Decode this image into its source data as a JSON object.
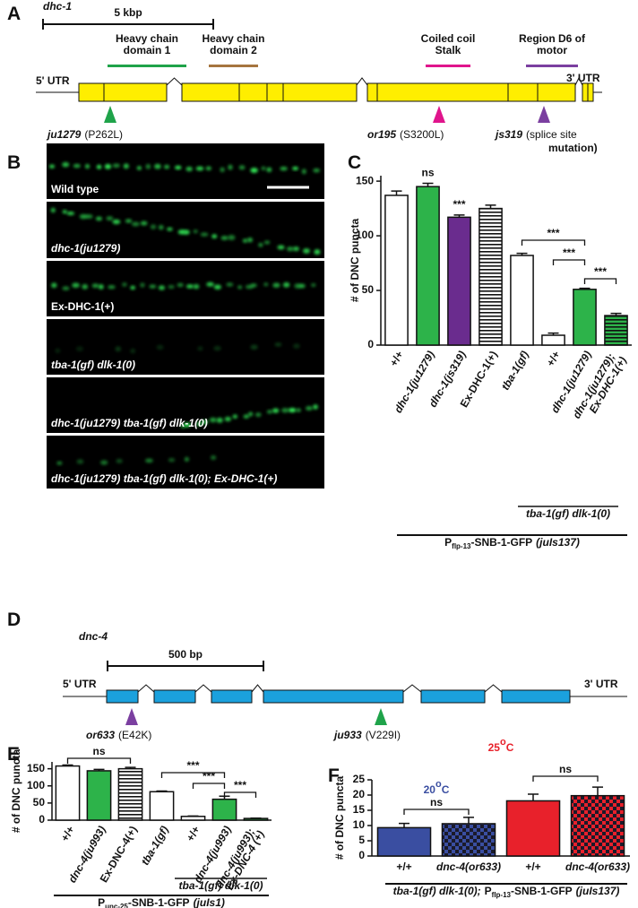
{
  "panel_letters": [
    "A",
    "B",
    "C",
    "D",
    "E",
    "F"
  ],
  "panel_a": {
    "gene": "dhc-1",
    "scale_label": "5 kbp",
    "utr5": "5' UTR",
    "utr3": "3' UTR",
    "exon_color": "#ffee00",
    "domains": [
      {
        "label": [
          "Heavy chain",
          "domain 1"
        ],
        "color": "#1fa34a"
      },
      {
        "label": [
          "Heavy chain",
          "domain 2"
        ],
        "color": "#a6753f"
      },
      {
        "label": [
          "Coiled coil",
          "Stalk"
        ],
        "color": "#e0148c"
      },
      {
        "label": [
          "Region D6 of",
          "motor"
        ],
        "color": "#7b3fa0"
      }
    ],
    "mutations": [
      {
        "allele": "ju1279",
        "change": [
          "(P262L)"
        ],
        "color": "#1fa34a"
      },
      {
        "allele": "or195",
        "change": [
          "(S3200L)"
        ],
        "color": "#e0148c"
      },
      {
        "allele": "js319",
        "change": [
          "(splice site",
          "mutation)"
        ],
        "color": "#7b3fa0"
      }
    ]
  },
  "panel_b": {
    "labels": [
      "Wild type",
      "dhc-1(ju1279)",
      "Ex-DHC-1(+)",
      "tba-1(gf) dlk-1(0)",
      "dhc-1(ju1279) tba-1(gf) dlk-1(0)",
      "dhc-1(ju1279) tba-1(gf) dlk-1(0); Ex-DHC-1(+)"
    ]
  },
  "panel_d": {
    "gene": "dnc-4",
    "scale_label": "500 bp",
    "utr5": "5' UTR",
    "utr3": "3' UTR",
    "exon_color": "#1ba1dd",
    "mutations": [
      {
        "allele": "or633",
        "change": [
          "(E42K)"
        ],
        "color": "#7b3fa0"
      },
      {
        "allele": "ju933",
        "change": [
          "(V229I)"
        ],
        "color": "#1fa34a"
      }
    ]
  },
  "chart_data": [
    {
      "type": "bar",
      "y_label": "# of DNC puncta",
      "categories": [
        "+/+",
        "dhc-1(ju1279)",
        "dhc-1(js319)",
        "Ex-DHC-1(+)",
        "tba-1(gf)",
        "+/+",
        "dhc-1(ju1279)",
        "dhc-1(ju1279); Ex-DHC-1(+)"
      ],
      "values": [
        137,
        145,
        117,
        125,
        82,
        9,
        51,
        27
      ],
      "errors": [
        4,
        3,
        2,
        3,
        2,
        2,
        1,
        2
      ],
      "colors": [
        "#ffffff",
        "#2db34a",
        "#6a2c8e",
        "#ffffff",
        "#ffffff",
        "#ffffff",
        "#2db34a",
        "#2db34a"
      ],
      "fills": [
        "solid",
        "solid",
        "solid",
        "horizontal-lines",
        "solid",
        "solid",
        "solid",
        "horizontal-lines"
      ],
      "ylim": [
        0,
        155
      ],
      "yticks": [
        0,
        50,
        100,
        150
      ],
      "annotations": [
        "ns",
        "***"
      ],
      "brackets": [
        "***",
        "***",
        "***"
      ],
      "group_label": "tba-1(gf) dlk-1(0)",
      "reporter_label": [
        "P",
        "flp-13",
        "-SNB-1-GFP",
        "(juIs137)"
      ]
    },
    {
      "type": "bar",
      "y_label": "# of DNC puncta",
      "categories": [
        "+/+",
        "dnc-4(ju993)",
        "Ex-DNC-4(+)",
        "tba-1(gf)",
        "+/+",
        "dnc-4(ju993)",
        "dnc-4(ju993); Ex-DNC-4 (+)"
      ],
      "values": [
        158,
        144,
        150,
        83,
        11,
        61,
        5
      ],
      "errors": [
        3,
        4,
        4,
        2,
        1,
        9,
        1
      ],
      "colors": [
        "#ffffff",
        "#2db34a",
        "#ffffff",
        "#ffffff",
        "#ffffff",
        "#2db34a",
        "#2db34a"
      ],
      "fills": [
        "solid",
        "solid",
        "horizontal-lines",
        "solid",
        "solid",
        "solid",
        "horizontal-lines"
      ],
      "ylim": [
        0,
        170
      ],
      "yticks": [
        0,
        50,
        100,
        150
      ],
      "brackets": [
        "ns",
        "***",
        "***",
        "***"
      ],
      "group_label": "tba-1(gf) dlk-1(0)",
      "reporter_label": [
        "P",
        "unc-25",
        "-SNB-1-GFP",
        "(juIs1)"
      ]
    },
    {
      "type": "bar",
      "y_label": "# of DNC puncta",
      "categories": [
        "+/+",
        "dnc-4(or633)",
        "+/+",
        "dnc-4(or633)"
      ],
      "values": [
        9.3,
        10.6,
        18.1,
        19.8
      ],
      "errors": [
        1.4,
        2.1,
        2.2,
        2.8
      ],
      "colors": [
        "#3a4ea1",
        "#3a4ea1",
        "#e8212b",
        "#e8212b"
      ],
      "fills": [
        "solid",
        "checker",
        "solid",
        "checker"
      ],
      "ylim": [
        0,
        25
      ],
      "yticks": [
        0,
        5,
        10,
        15,
        20,
        25
      ],
      "brackets": [
        "ns",
        "ns"
      ],
      "temperature_labels": [
        {
          "text": [
            "20",
            "o",
            "C"
          ],
          "color": "#3a4ea1"
        },
        {
          "text": [
            "25",
            "o",
            "C"
          ],
          "color": "#e8212b"
        }
      ],
      "footer_label": [
        "tba-1(gf) dlk-1(0);",
        "P",
        "flp-13",
        "-SNB-1-GFP",
        "(juIs137)"
      ]
    }
  ]
}
